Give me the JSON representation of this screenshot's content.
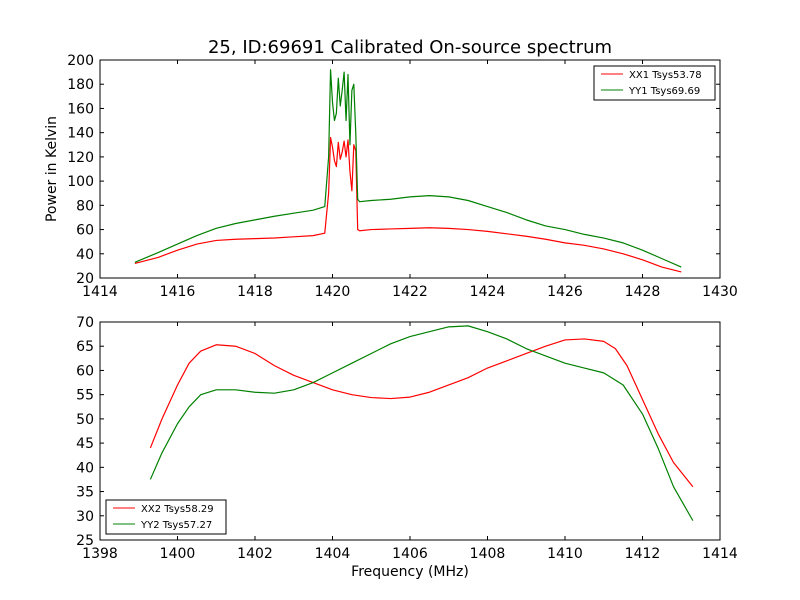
{
  "chart_data": [
    {
      "type": "line",
      "title": "25, ID:69691 Calibrated On-source spectrum",
      "xlabel": "",
      "ylabel": "Power in Kelvin",
      "xlim": [
        1414,
        1430
      ],
      "ylim": [
        20,
        200
      ],
      "xticks": [
        1414,
        1416,
        1418,
        1420,
        1422,
        1424,
        1426,
        1428,
        1430
      ],
      "yticks": [
        20,
        40,
        60,
        80,
        100,
        120,
        140,
        160,
        180,
        200
      ],
      "legend_position": "top-right",
      "series": [
        {
          "name": "XX1 Tsys53.78",
          "color": "#ff0000",
          "x": [
            1414.9,
            1415.5,
            1416,
            1416.5,
            1417,
            1417.5,
            1418,
            1418.5,
            1419,
            1419.5,
            1419.8,
            1419.9,
            1419.95,
            1420.0,
            1420.05,
            1420.1,
            1420.15,
            1420.2,
            1420.25,
            1420.3,
            1420.35,
            1420.4,
            1420.45,
            1420.5,
            1420.55,
            1420.6,
            1420.65,
            1420.7,
            1421,
            1421.5,
            1422,
            1422.5,
            1423,
            1423.5,
            1424,
            1424.5,
            1425,
            1425.5,
            1426,
            1426.5,
            1427,
            1427.5,
            1428,
            1428.5,
            1429
          ],
          "y": [
            32,
            37,
            43,
            48,
            51,
            52,
            52.5,
            53,
            54,
            55,
            57,
            90,
            136,
            128,
            117,
            112,
            132,
            118,
            124,
            133,
            120,
            134,
            108,
            92,
            130,
            125,
            60,
            59,
            60,
            60.5,
            61,
            61.5,
            61,
            60,
            58.5,
            56.5,
            54.5,
            52,
            49,
            47,
            44,
            40,
            35,
            29,
            25
          ]
        },
        {
          "name": "YY1 Tsys69.69",
          "color": "#008000",
          "x": [
            1414.9,
            1415.5,
            1416,
            1416.5,
            1417,
            1417.5,
            1418,
            1418.5,
            1419,
            1419.5,
            1419.8,
            1419.9,
            1419.95,
            1420.0,
            1420.05,
            1420.1,
            1420.15,
            1420.2,
            1420.25,
            1420.3,
            1420.35,
            1420.4,
            1420.45,
            1420.5,
            1420.55,
            1420.6,
            1420.65,
            1420.7,
            1421,
            1421.5,
            1422,
            1422.5,
            1423,
            1423.5,
            1424,
            1424.5,
            1425,
            1425.5,
            1426,
            1426.5,
            1427,
            1427.5,
            1428,
            1428.5,
            1429
          ],
          "y": [
            33,
            41,
            48,
            55,
            61,
            65,
            68,
            71,
            73.5,
            76,
            79,
            120,
            192,
            165,
            150,
            156,
            185,
            162,
            175,
            190,
            150,
            188,
            130,
            175,
            180,
            140,
            85,
            83,
            84,
            85,
            87,
            88,
            87,
            84,
            79,
            74,
            68,
            63,
            60,
            56,
            53,
            49,
            43,
            36,
            29
          ]
        }
      ]
    },
    {
      "type": "line",
      "title": "",
      "xlabel": "Frequency (MHz)",
      "ylabel": "",
      "xlim": [
        1398,
        1414
      ],
      "ylim": [
        25,
        70
      ],
      "xticks": [
        1398,
        1400,
        1402,
        1404,
        1406,
        1408,
        1410,
        1412,
        1414
      ],
      "yticks": [
        25,
        30,
        35,
        40,
        45,
        50,
        55,
        60,
        65,
        70
      ],
      "legend_position": "bottom-left",
      "series": [
        {
          "name": "XX2 Tsys58.29",
          "color": "#ff0000",
          "x": [
            1399.3,
            1399.6,
            1400,
            1400.3,
            1400.6,
            1401,
            1401.5,
            1402,
            1402.5,
            1403,
            1403.5,
            1404,
            1404.5,
            1405,
            1405.5,
            1406,
            1406.5,
            1407,
            1407.5,
            1408,
            1408.5,
            1409,
            1409.5,
            1410,
            1410.5,
            1411,
            1411.3,
            1411.6,
            1412,
            1412.4,
            1412.8,
            1413.3
          ],
          "y": [
            44,
            50,
            57,
            61.5,
            64,
            65.3,
            65,
            63.5,
            61,
            59,
            57.5,
            56,
            55,
            54.4,
            54.2,
            54.5,
            55.5,
            57,
            58.5,
            60.5,
            62,
            63.5,
            65,
            66.3,
            66.5,
            66,
            64.5,
            61,
            54,
            47,
            41,
            36
          ]
        },
        {
          "name": "YY2 Tsys57.27",
          "color": "#008000",
          "x": [
            1399.3,
            1399.6,
            1400,
            1400.3,
            1400.6,
            1401,
            1401.5,
            1402,
            1402.5,
            1403,
            1403.5,
            1404,
            1404.5,
            1405,
            1405.5,
            1406,
            1406.5,
            1407,
            1407.5,
            1408,
            1408.5,
            1409,
            1409.5,
            1410,
            1410.5,
            1411,
            1411.5,
            1412,
            1412.4,
            1412.8,
            1413.3
          ],
          "y": [
            37.5,
            43,
            49,
            52.5,
            55,
            56,
            56,
            55.5,
            55.3,
            56,
            57.5,
            59.5,
            61.5,
            63.5,
            65.5,
            67,
            68,
            69,
            69.2,
            68,
            66.5,
            64.5,
            63,
            61.5,
            60.5,
            59.5,
            57,
            51,
            44,
            36,
            29
          ]
        }
      ]
    }
  ]
}
